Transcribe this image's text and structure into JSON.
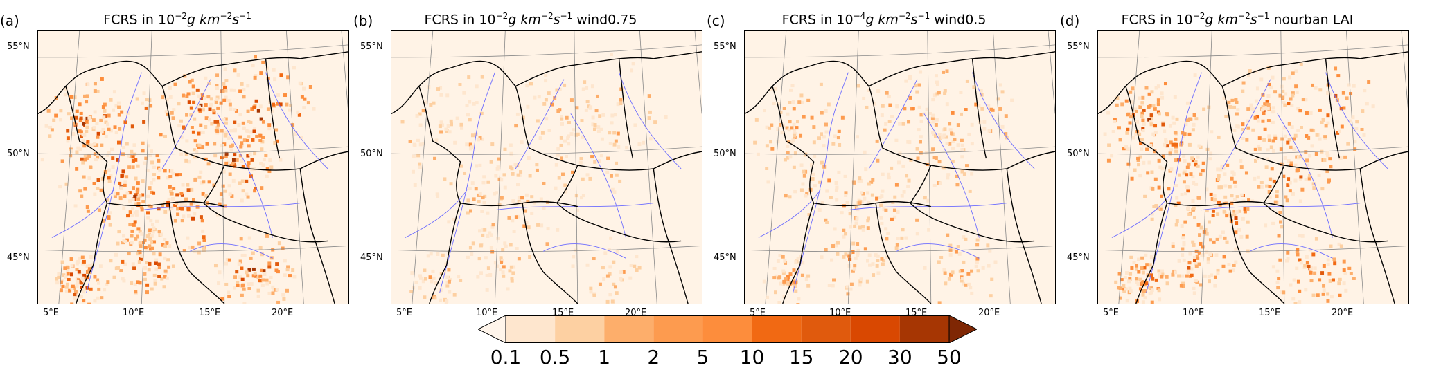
{
  "panels": [
    {
      "letter": "(a)",
      "title_prefix": "FCRS in 10",
      "exp": "−2",
      "unit": "g km",
      "unit_exp": "−2",
      "s": "s",
      "s_exp": "−1",
      "suffix": ""
    },
    {
      "letter": "(b)",
      "title_prefix": "FCRS in 10",
      "exp": "−2",
      "unit": "g km",
      "unit_exp": "−2",
      "s": "s",
      "s_exp": "−1",
      "suffix": " wind0.75"
    },
    {
      "letter": "(c)",
      "title_prefix": "FCRS in 10",
      "exp": "−4",
      "unit": "g km",
      "unit_exp": "−2",
      "s": "s",
      "s_exp": "−1",
      "suffix": " wind0.5"
    },
    {
      "letter": "(d)",
      "title_prefix": "FCRS in 10",
      "exp": "−2",
      "unit": "g km",
      "unit_exp": "−2",
      "s": "s",
      "s_exp": "−1",
      "suffix": "  nourban LAI"
    }
  ],
  "lat_labels": [
    "55°N",
    "50°N",
    "45°N"
  ],
  "lon_labels": [
    "5°E",
    "10°E",
    "15°E",
    "20°E"
  ],
  "colorbar": {
    "ticks": [
      "0.1",
      "0.5",
      "1",
      "2",
      "5",
      "10",
      "15",
      "20",
      "30",
      "50"
    ],
    "colors": [
      "#fee6ce",
      "#fdd0a2",
      "#fdae6b",
      "#fd9b4f",
      "#fd8d3c",
      "#f16913",
      "#e05a0d",
      "#d94801",
      "#a63603",
      "#7f2704"
    ],
    "under_color": "#fff5eb"
  },
  "intensity": [
    1.0,
    0.45,
    0.55,
    0.85
  ]
}
